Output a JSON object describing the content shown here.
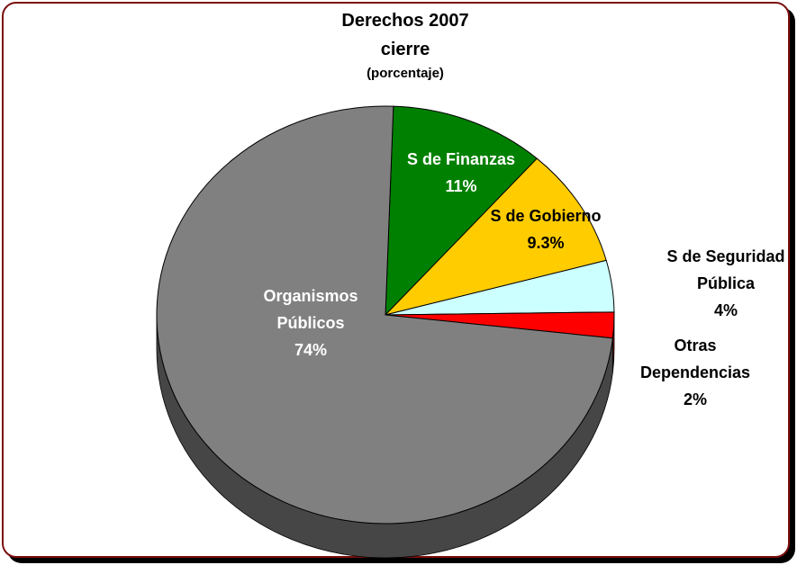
{
  "chart_data": {
    "type": "pie",
    "title": "Derechos 2007",
    "title_line2": "cierre",
    "subtitle": "(porcentaje)",
    "slices": [
      {
        "label_lines": [
          "S de Finanzas",
          "11%"
        ],
        "value": 11,
        "color": "#008000",
        "text_color": "#ffffff"
      },
      {
        "label_lines": [
          "S de Gobierno",
          "9.3%"
        ],
        "value": 9.3,
        "color": "#ffcc00",
        "text_color": "#000000"
      },
      {
        "label_lines": [
          "S de Seguridad",
          "Pública",
          "4%"
        ],
        "value": 4,
        "color": "#ccffff",
        "text_color": "#000000"
      },
      {
        "label_lines": [
          "Otras",
          "Dependencias",
          "2%"
        ],
        "value": 2,
        "color": "#ff0000",
        "text_color": "#000000"
      },
      {
        "label_lines": [
          "Organismos",
          "Públicos",
          "74%"
        ],
        "value": 74,
        "color": "#808080",
        "text_color": "#ffffff"
      }
    ],
    "legend": "none",
    "style": "3d-tilted"
  }
}
